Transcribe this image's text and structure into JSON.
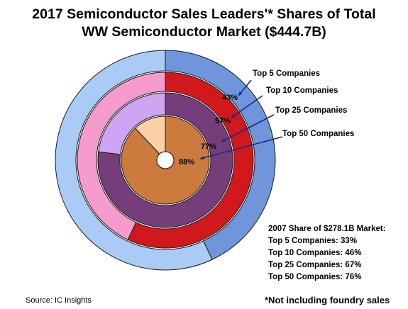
{
  "title": {
    "line1": "2017 Semiconductor Sales Leaders'* Shares of Total",
    "line2": "WW Semiconductor Market ($444.7B)"
  },
  "chart_data": {
    "type": "pie",
    "subtype": "nested-donut",
    "rings": [
      {
        "name": "Top 5 Companies",
        "value": 43,
        "label": "43%",
        "color": "#6f95db",
        "rest_color": "#a9cbf6"
      },
      {
        "name": "Top 10 Companies",
        "value": 57,
        "label": "57%",
        "color": "#d0181d",
        "rest_color": "#f69ccc"
      },
      {
        "name": "Top 25 Companies",
        "value": 77,
        "label": "77%",
        "color": "#763d7b",
        "rest_color": "#cda5f2"
      },
      {
        "name": "Top 50 Companies",
        "value": 88,
        "label": "88%",
        "color": "#cc7a3d",
        "rest_color": "#fbd0a4"
      }
    ],
    "comparison": {
      "title": "2007 Share of $278.1B Market:",
      "items": [
        {
          "name": "Top 5 Companies:",
          "value": "33%"
        },
        {
          "name": "Top 10 Companies:",
          "value": "46%"
        },
        {
          "name": "Top 25 Companies:",
          "value": "67%"
        },
        {
          "name": "Top 50 Companies:",
          "value": "76%"
        }
      ]
    }
  },
  "source": "Source: IC Insights",
  "footnote": "*Not including foundry sales"
}
